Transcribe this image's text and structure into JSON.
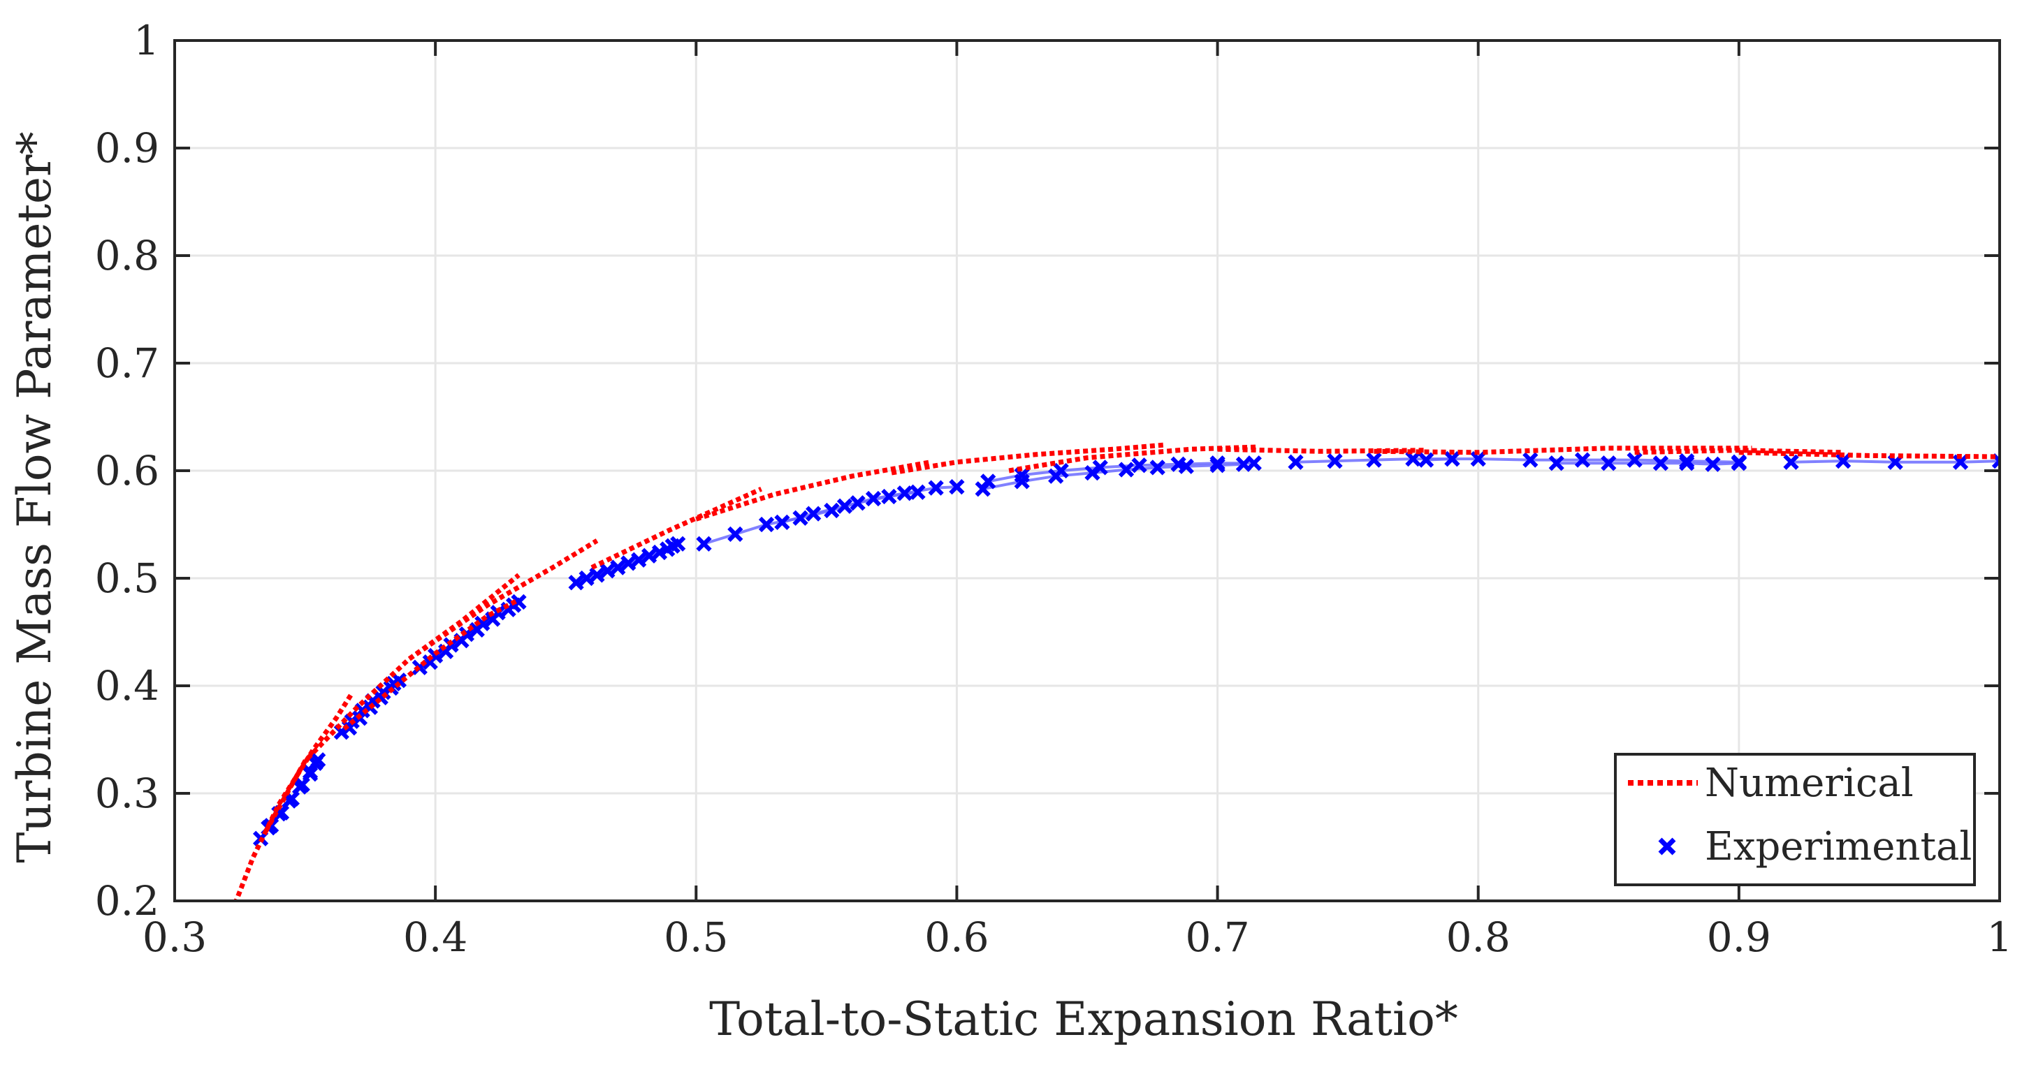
{
  "chart_data": {
    "type": "line",
    "title": "",
    "xlabel": "Total-to-Static Expansion Ratio*",
    "ylabel": "Turbine Mass Flow Parameter*",
    "xlim": [
      0.3,
      1.0
    ],
    "ylim": [
      0.2,
      1.0
    ],
    "xticks": [
      "0.3",
      "0.4",
      "0.5",
      "0.6",
      "0.7",
      "0.8",
      "0.9",
      "1"
    ],
    "yticks": [
      "0.2",
      "0.3",
      "0.4",
      "0.5",
      "0.6",
      "0.7",
      "0.8",
      "0.9",
      "1"
    ],
    "grid": true,
    "legend": {
      "position": "bottom-right",
      "entries": [
        "Numerical",
        "Experimental"
      ]
    },
    "colors": {
      "numerical": "#ff0000",
      "experimental": "#0000ff",
      "experimental_line": "#6b6bff",
      "axis": "#262626",
      "grid": "#e6e6e6"
    },
    "series": [
      {
        "name": "Numerical",
        "style": "dotted-line",
        "segments": [
          [
            [
              0.322,
              0.19
            ],
            [
              0.33,
              0.24
            ],
            [
              0.34,
              0.29
            ],
            [
              0.353,
              0.34
            ],
            [
              0.362,
              0.37
            ],
            [
              0.368,
              0.393
            ]
          ],
          [
            [
              0.365,
              0.36
            ],
            [
              0.38,
              0.39
            ],
            [
              0.4,
              0.43
            ],
            [
              0.42,
              0.465
            ],
            [
              0.432,
              0.48
            ]
          ],
          [
            [
              0.335,
              0.265
            ],
            [
              0.35,
              0.33
            ],
            [
              0.37,
              0.38
            ],
            [
              0.39,
              0.425
            ],
            [
              0.41,
              0.46
            ],
            [
              0.432,
              0.503
            ]
          ],
          [
            [
              0.39,
              0.425
            ],
            [
              0.42,
              0.475
            ],
            [
              0.445,
              0.51
            ],
            [
              0.462,
              0.535
            ]
          ],
          [
            [
              0.46,
              0.51
            ],
            [
              0.49,
              0.545
            ],
            [
              0.525,
              0.583
            ]
          ],
          [
            [
              0.5,
              0.555
            ],
            [
              0.53,
              0.578
            ],
            [
              0.56,
              0.595
            ],
            [
              0.59,
              0.608
            ]
          ],
          [
            [
              0.575,
              0.598
            ],
            [
              0.6,
              0.608
            ],
            [
              0.63,
              0.615
            ],
            [
              0.66,
              0.62
            ],
            [
              0.68,
              0.624
            ]
          ],
          [
            [
              0.62,
              0.6
            ],
            [
              0.65,
              0.612
            ],
            [
              0.69,
              0.62
            ],
            [
              0.715,
              0.622
            ]
          ],
          [
            [
              0.7,
              0.62
            ],
            [
              0.74,
              0.618
            ],
            [
              0.78,
              0.619
            ]
          ],
          [
            [
              0.76,
              0.618
            ],
            [
              0.8,
              0.617
            ],
            [
              0.85,
              0.621
            ],
            [
              0.905,
              0.621
            ]
          ],
          [
            [
              0.86,
              0.617
            ],
            [
              0.9,
              0.619
            ],
            [
              0.94,
              0.617
            ]
          ],
          [
            [
              0.9,
              0.617
            ],
            [
              0.95,
              0.614
            ],
            [
              1.0,
              0.613
            ]
          ]
        ]
      },
      {
        "name": "Experimental",
        "style": "markers-x",
        "segments": [
          [
            [
              0.333,
              0.258
            ],
            [
              0.337,
              0.27
            ],
            [
              0.341,
              0.282
            ],
            [
              0.345,
              0.295
            ],
            [
              0.349,
              0.308
            ],
            [
              0.352,
              0.318
            ],
            [
              0.354,
              0.328
            ]
          ],
          [
            [
              0.336,
              0.268
            ],
            [
              0.34,
              0.281
            ],
            [
              0.344,
              0.293
            ],
            [
              0.348,
              0.306
            ],
            [
              0.352,
              0.32
            ],
            [
              0.355,
              0.331
            ]
          ],
          [
            [
              0.364,
              0.357
            ],
            [
              0.368,
              0.367
            ],
            [
              0.372,
              0.377
            ],
            [
              0.376,
              0.386
            ],
            [
              0.38,
              0.394
            ],
            [
              0.384,
              0.402
            ]
          ],
          [
            [
              0.367,
              0.361
            ],
            [
              0.371,
              0.37
            ],
            [
              0.375,
              0.38
            ],
            [
              0.379,
              0.389
            ],
            [
              0.383,
              0.398
            ],
            [
              0.386,
              0.405
            ]
          ],
          [
            [
              0.394,
              0.417
            ],
            [
              0.4,
              0.428
            ],
            [
              0.406,
              0.438
            ],
            [
              0.412,
              0.448
            ],
            [
              0.418,
              0.458
            ],
            [
              0.424,
              0.468
            ],
            [
              0.43,
              0.475
            ]
          ],
          [
            [
              0.398,
              0.422
            ],
            [
              0.404,
              0.432
            ],
            [
              0.41,
              0.442
            ],
            [
              0.416,
              0.452
            ],
            [
              0.422,
              0.462
            ],
            [
              0.428,
              0.471
            ],
            [
              0.432,
              0.478
            ]
          ],
          [
            [
              0.454,
              0.496
            ],
            [
              0.462,
              0.503
            ],
            [
              0.47,
              0.51
            ],
            [
              0.478,
              0.517
            ],
            [
              0.486,
              0.524
            ],
            [
              0.491,
              0.53
            ]
          ],
          [
            [
              0.458,
              0.5
            ],
            [
              0.466,
              0.507
            ],
            [
              0.474,
              0.514
            ],
            [
              0.482,
              0.521
            ],
            [
              0.489,
              0.527
            ],
            [
              0.493,
              0.532
            ]
          ],
          [
            [
              0.503,
              0.532
            ],
            [
              0.515,
              0.541
            ],
            [
              0.527,
              0.55
            ],
            [
              0.54,
              0.556
            ],
            [
              0.552,
              0.563
            ],
            [
              0.562,
              0.57
            ],
            [
              0.574,
              0.576
            ],
            [
              0.585,
              0.58
            ]
          ],
          [
            [
              0.533,
              0.552
            ],
            [
              0.545,
              0.56
            ],
            [
              0.557,
              0.567
            ],
            [
              0.568,
              0.574
            ],
            [
              0.58,
              0.579
            ],
            [
              0.592,
              0.584
            ],
            [
              0.6,
              0.585
            ]
          ],
          [
            [
              0.61,
              0.583
            ],
            [
              0.625,
              0.59
            ],
            [
              0.638,
              0.595
            ],
            [
              0.652,
              0.598
            ],
            [
              0.665,
              0.601
            ],
            [
              0.677,
              0.603
            ],
            [
              0.688,
              0.604
            ],
            [
              0.7,
              0.605
            ],
            [
              0.71,
              0.606
            ]
          ],
          [
            [
              0.612,
              0.59
            ],
            [
              0.625,
              0.596
            ],
            [
              0.64,
              0.6
            ],
            [
              0.655,
              0.603
            ],
            [
              0.67,
              0.605
            ],
            [
              0.685,
              0.606
            ],
            [
              0.7,
              0.607
            ],
            [
              0.714,
              0.607
            ]
          ],
          [
            [
              0.73,
              0.608
            ],
            [
              0.745,
              0.609
            ],
            [
              0.76,
              0.61
            ],
            [
              0.775,
              0.611
            ],
            [
              0.79,
              0.611
            ]
          ],
          [
            [
              0.78,
              0.61
            ],
            [
              0.79,
              0.611
            ],
            [
              0.8,
              0.611
            ],
            [
              0.82,
              0.61
            ],
            [
              0.84,
              0.61
            ],
            [
              0.86,
              0.61
            ],
            [
              0.88,
              0.609
            ],
            [
              0.9,
              0.608
            ]
          ],
          [
            [
              0.83,
              0.607
            ],
            [
              0.85,
              0.607
            ],
            [
              0.87,
              0.607
            ],
            [
              0.88,
              0.607
            ],
            [
              0.89,
              0.606
            ],
            [
              0.9,
              0.607
            ]
          ],
          [
            [
              0.92,
              0.608
            ],
            [
              0.94,
              0.609
            ],
            [
              0.96,
              0.608
            ],
            [
              0.985,
              0.608
            ],
            [
              1.0,
              0.609
            ]
          ]
        ]
      }
    ]
  }
}
